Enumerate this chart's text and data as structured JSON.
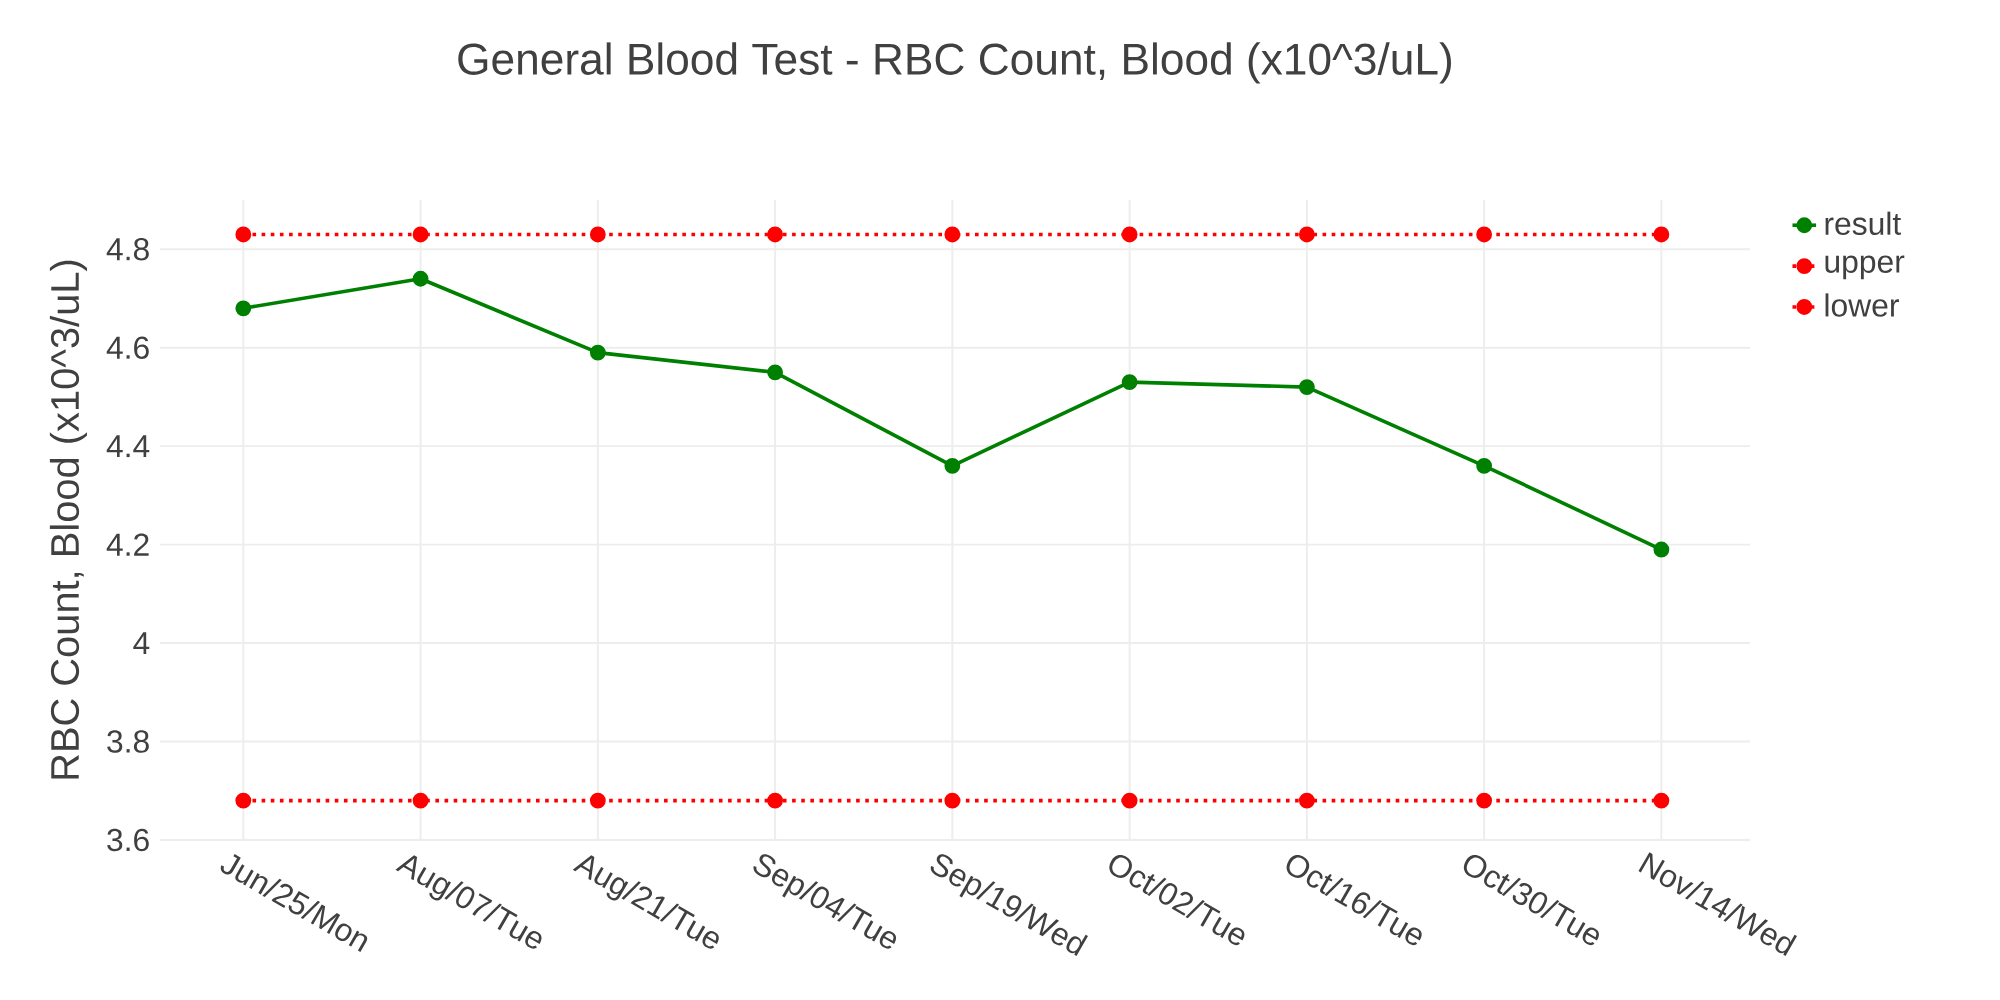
{
  "chart_data": {
    "type": "line",
    "title": "General Blood Test - RBC Count, Blood (x10^3/uL)",
    "ylabel": "RBC Count, Blood (x10^3/uL)",
    "categories": [
      "Jun/25/Mon",
      "Aug/07/Tue",
      "Aug/21/Tue",
      "Sep/04/Tue",
      "Sep/19/Wed",
      "Oct/02/Tue",
      "Oct/16/Tue",
      "Oct/30/Tue",
      "Nov/14/Wed"
    ],
    "series": [
      {
        "name": "result",
        "color": "#008000",
        "line_style": "solid",
        "values": [
          4.68,
          4.74,
          4.59,
          4.55,
          4.36,
          4.53,
          4.52,
          4.36,
          4.19
        ]
      },
      {
        "name": "upper",
        "color": "#ff0000",
        "line_style": "dotted",
        "values": [
          4.83,
          4.83,
          4.83,
          4.83,
          4.83,
          4.83,
          4.83,
          4.83,
          4.83
        ]
      },
      {
        "name": "lower",
        "color": "#ff0000",
        "line_style": "dotted",
        "values": [
          3.68,
          3.68,
          3.68,
          3.68,
          3.68,
          3.68,
          3.68,
          3.68,
          3.68
        ]
      }
    ],
    "marker": "circle",
    "grid": true,
    "legend": "top right",
    "ylim": [
      3.6,
      4.9
    ],
    "yticks": [
      3.6,
      3.8,
      4,
      4.2,
      4.4,
      4.6,
      4.8
    ]
  }
}
